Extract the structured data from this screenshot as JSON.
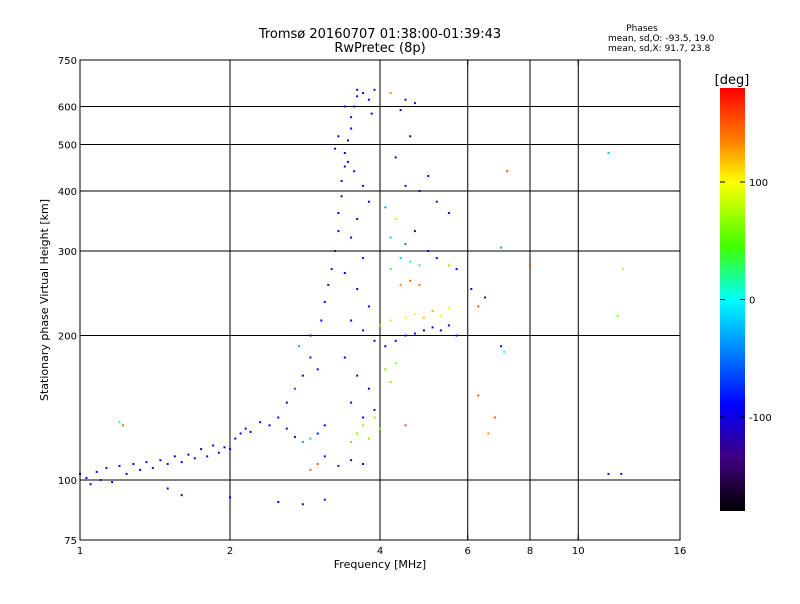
{
  "chart_data": {
    "type": "scatter",
    "title": "Tromsø 20160707 01:38:00-01:39:43",
    "subtitle": "RwPretec (8p)",
    "xlabel": "Frequency [MHz]",
    "ylabel": "Stationary phase Virtual Height [km]",
    "xscale": "log",
    "yscale": "log",
    "xlim": [
      1,
      16
    ],
    "ylim": [
      75,
      750
    ],
    "xticks": [
      1,
      2,
      4,
      6,
      8,
      10,
      16
    ],
    "yticks": [
      75,
      100,
      200,
      300,
      400,
      500,
      600,
      750
    ],
    "x_gridlines": [
      2,
      4,
      6,
      8,
      10
    ],
    "y_gridlines": [
      100,
      200,
      300,
      400,
      500,
      600
    ],
    "grid": true,
    "phase_info": {
      "heading": "Phases",
      "line_o": "mean, sd,O: -93.5, 19.0",
      "line_x": "mean, sd,X:  91.7, 23.8"
    },
    "colorbar": {
      "label": "[deg]",
      "range": [
        -180,
        180
      ],
      "ticks": [
        100,
        0,
        -100
      ],
      "stops": [
        {
          "value": 180,
          "color": "#ff0000"
        },
        {
          "value": 135,
          "color": "#ff8000"
        },
        {
          "value": 100,
          "color": "#ffff00"
        },
        {
          "value": 45,
          "color": "#40ff00"
        },
        {
          "value": 0,
          "color": "#00ffff"
        },
        {
          "value": -45,
          "color": "#0080ff"
        },
        {
          "value": -90,
          "color": "#0000ff"
        },
        {
          "value": -135,
          "color": "#400080"
        },
        {
          "value": -180,
          "color": "#000000"
        }
      ]
    },
    "series": [
      {
        "points": [
          [
            1.0,
            103,
            -100
          ],
          [
            1.03,
            101,
            -100
          ],
          [
            1.05,
            98,
            -100
          ],
          [
            1.08,
            104,
            -100
          ],
          [
            1.1,
            100,
            -100
          ],
          [
            1.13,
            106,
            -100
          ],
          [
            1.16,
            99,
            -100
          ],
          [
            1.2,
            107,
            -100
          ],
          [
            1.24,
            103,
            -100
          ],
          [
            1.28,
            108,
            -100
          ],
          [
            1.32,
            105,
            -100
          ],
          [
            1.36,
            109,
            -100
          ],
          [
            1.4,
            106,
            -100
          ],
          [
            1.45,
            110,
            -100
          ],
          [
            1.5,
            108,
            -100
          ],
          [
            1.55,
            112,
            -100
          ],
          [
            1.6,
            109,
            -100
          ],
          [
            1.65,
            113,
            -100
          ],
          [
            1.7,
            111,
            -100
          ],
          [
            1.75,
            116,
            -100
          ],
          [
            1.8,
            112,
            -100
          ],
          [
            1.85,
            118,
            -100
          ],
          [
            1.9,
            114,
            -100
          ],
          [
            1.95,
            117,
            -100
          ],
          [
            2.0,
            116,
            -100
          ],
          [
            2.05,
            122,
            -100
          ],
          [
            2.1,
            125,
            -100
          ],
          [
            2.15,
            128,
            -100
          ],
          [
            2.2,
            126,
            -100
          ],
          [
            2.3,
            132,
            -100
          ],
          [
            2.4,
            130,
            -100
          ],
          [
            2.5,
            135,
            -100
          ],
          [
            2.6,
            128,
            -100
          ],
          [
            2.7,
            123,
            -100
          ],
          [
            2.8,
            120,
            -30
          ],
          [
            2.9,
            122,
            -20
          ],
          [
            3.0,
            125,
            -80
          ],
          [
            3.1,
            130,
            -100
          ],
          [
            2.6,
            145,
            -100
          ],
          [
            2.7,
            155,
            -60
          ],
          [
            2.8,
            165,
            -100
          ],
          [
            2.9,
            180,
            -100
          ],
          [
            3.0,
            170,
            -100
          ],
          [
            2.75,
            190,
            -30
          ],
          [
            2.9,
            200,
            -100
          ],
          [
            3.05,
            215,
            -100
          ],
          [
            3.1,
            235,
            -100
          ],
          [
            3.15,
            255,
            -100
          ],
          [
            3.2,
            275,
            -100
          ],
          [
            3.25,
            300,
            -100
          ],
          [
            3.3,
            330,
            -100
          ],
          [
            3.3,
            360,
            -100
          ],
          [
            3.35,
            390,
            -100
          ],
          [
            3.35,
            420,
            -100
          ],
          [
            3.4,
            450,
            -100
          ],
          [
            3.4,
            480,
            -100
          ],
          [
            3.45,
            510,
            -100
          ],
          [
            3.5,
            540,
            -100
          ],
          [
            3.5,
            570,
            -100
          ],
          [
            3.55,
            600,
            -100
          ],
          [
            3.6,
            630,
            -100
          ],
          [
            3.6,
            650,
            -100
          ],
          [
            3.7,
            640,
            -100
          ],
          [
            3.8,
            620,
            -100
          ],
          [
            3.85,
            580,
            -100
          ],
          [
            3.9,
            650,
            -100
          ],
          [
            3.4,
            600,
            -100
          ],
          [
            3.3,
            520,
            -100
          ],
          [
            3.25,
            490,
            -100
          ],
          [
            3.45,
            460,
            -100
          ],
          [
            3.55,
            440,
            -100
          ],
          [
            3.7,
            410,
            -100
          ],
          [
            3.8,
            380,
            -100
          ],
          [
            3.6,
            350,
            -100
          ],
          [
            3.5,
            320,
            -100
          ],
          [
            3.7,
            290,
            -100
          ],
          [
            3.4,
            270,
            -100
          ],
          [
            3.6,
            250,
            -100
          ],
          [
            3.8,
            230,
            -100
          ],
          [
            3.5,
            215,
            -100
          ],
          [
            3.7,
            205,
            -100
          ],
          [
            3.9,
            195,
            -100
          ],
          [
            4.1,
            190,
            -100
          ],
          [
            4.3,
            195,
            -100
          ],
          [
            4.5,
            200,
            -100
          ],
          [
            4.7,
            202,
            -100
          ],
          [
            4.9,
            205,
            -100
          ],
          [
            5.1,
            208,
            -100
          ],
          [
            5.3,
            205,
            -100
          ],
          [
            5.5,
            210,
            -100
          ],
          [
            5.7,
            200,
            -100
          ],
          [
            3.4,
            180,
            -100
          ],
          [
            3.6,
            165,
            -100
          ],
          [
            3.8,
            155,
            -100
          ],
          [
            3.5,
            145,
            -100
          ],
          [
            3.7,
            135,
            -100
          ],
          [
            3.9,
            140,
            -100
          ],
          [
            3.6,
            125,
            60
          ],
          [
            3.8,
            122,
            60
          ],
          [
            4.0,
            128,
            60
          ],
          [
            3.7,
            130,
            60
          ],
          [
            3.9,
            135,
            60
          ],
          [
            3.5,
            120,
            60
          ],
          [
            4.2,
            160,
            60
          ],
          [
            4.1,
            170,
            60
          ],
          [
            4.3,
            175,
            60
          ],
          [
            4.0,
            210,
            60
          ],
          [
            4.2,
            215,
            80
          ],
          [
            4.5,
            218,
            100
          ],
          [
            4.7,
            222,
            100
          ],
          [
            4.9,
            218,
            120
          ],
          [
            5.1,
            225,
            120
          ],
          [
            5.3,
            220,
            100
          ],
          [
            5.5,
            228,
            100
          ],
          [
            4.4,
            255,
            130
          ],
          [
            4.6,
            260,
            140
          ],
          [
            4.8,
            255,
            140
          ],
          [
            4.2,
            275,
            30
          ],
          [
            4.4,
            290,
            -20
          ],
          [
            4.6,
            285,
            20
          ],
          [
            4.8,
            280,
            30
          ],
          [
            5.0,
            300,
            -100
          ],
          [
            5.2,
            290,
            -100
          ],
          [
            5.5,
            280,
            60
          ],
          [
            5.7,
            275,
            -100
          ],
          [
            4.2,
            320,
            -20
          ],
          [
            4.5,
            310,
            -50
          ],
          [
            4.7,
            330,
            -100
          ],
          [
            4.3,
            350,
            80
          ],
          [
            4.1,
            370,
            -30
          ],
          [
            4.5,
            410,
            -100
          ],
          [
            4.8,
            400,
            -100
          ],
          [
            5.0,
            430,
            -100
          ],
          [
            5.2,
            380,
            -100
          ],
          [
            5.5,
            360,
            -100
          ],
          [
            4.3,
            470,
            -100
          ],
          [
            4.6,
            520,
            -100
          ],
          [
            4.4,
            590,
            -100
          ],
          [
            4.7,
            610,
            -100
          ],
          [
            4.2,
            640,
            130
          ],
          [
            4.5,
            620,
            -100
          ],
          [
            6.1,
            250,
            -100
          ],
          [
            6.3,
            230,
            150
          ],
          [
            6.5,
            240,
            -100
          ],
          [
            7.0,
            305,
            -30
          ],
          [
            7.2,
            440,
            150
          ],
          [
            8.0,
            280,
            160
          ],
          [
            6.3,
            150,
            150
          ],
          [
            7.0,
            190,
            -100
          ],
          [
            7.1,
            185,
            0
          ],
          [
            6.8,
            135,
            150
          ],
          [
            6.6,
            125,
            130
          ],
          [
            11.5,
            103,
            -100
          ],
          [
            12.2,
            103,
            -100
          ],
          [
            11.5,
            480,
            -20
          ],
          [
            12.3,
            275,
            80
          ],
          [
            12.0,
            220,
            60
          ],
          [
            1.2,
            132,
            10
          ],
          [
            1.22,
            130,
            140
          ],
          [
            1.5,
            96,
            -100
          ],
          [
            1.6,
            93,
            -100
          ],
          [
            2.0,
            92,
            -100
          ],
          [
            2.5,
            90,
            -100
          ],
          [
            2.8,
            89,
            -100
          ],
          [
            3.1,
            91,
            -100
          ],
          [
            3.0,
            108,
            150
          ],
          [
            3.1,
            112,
            -100
          ],
          [
            3.3,
            107,
            -80
          ],
          [
            3.5,
            110,
            -100
          ],
          [
            3.7,
            108,
            -100
          ],
          [
            2.9,
            105,
            140
          ],
          [
            4.5,
            130,
            150
          ]
        ]
      }
    ]
  }
}
